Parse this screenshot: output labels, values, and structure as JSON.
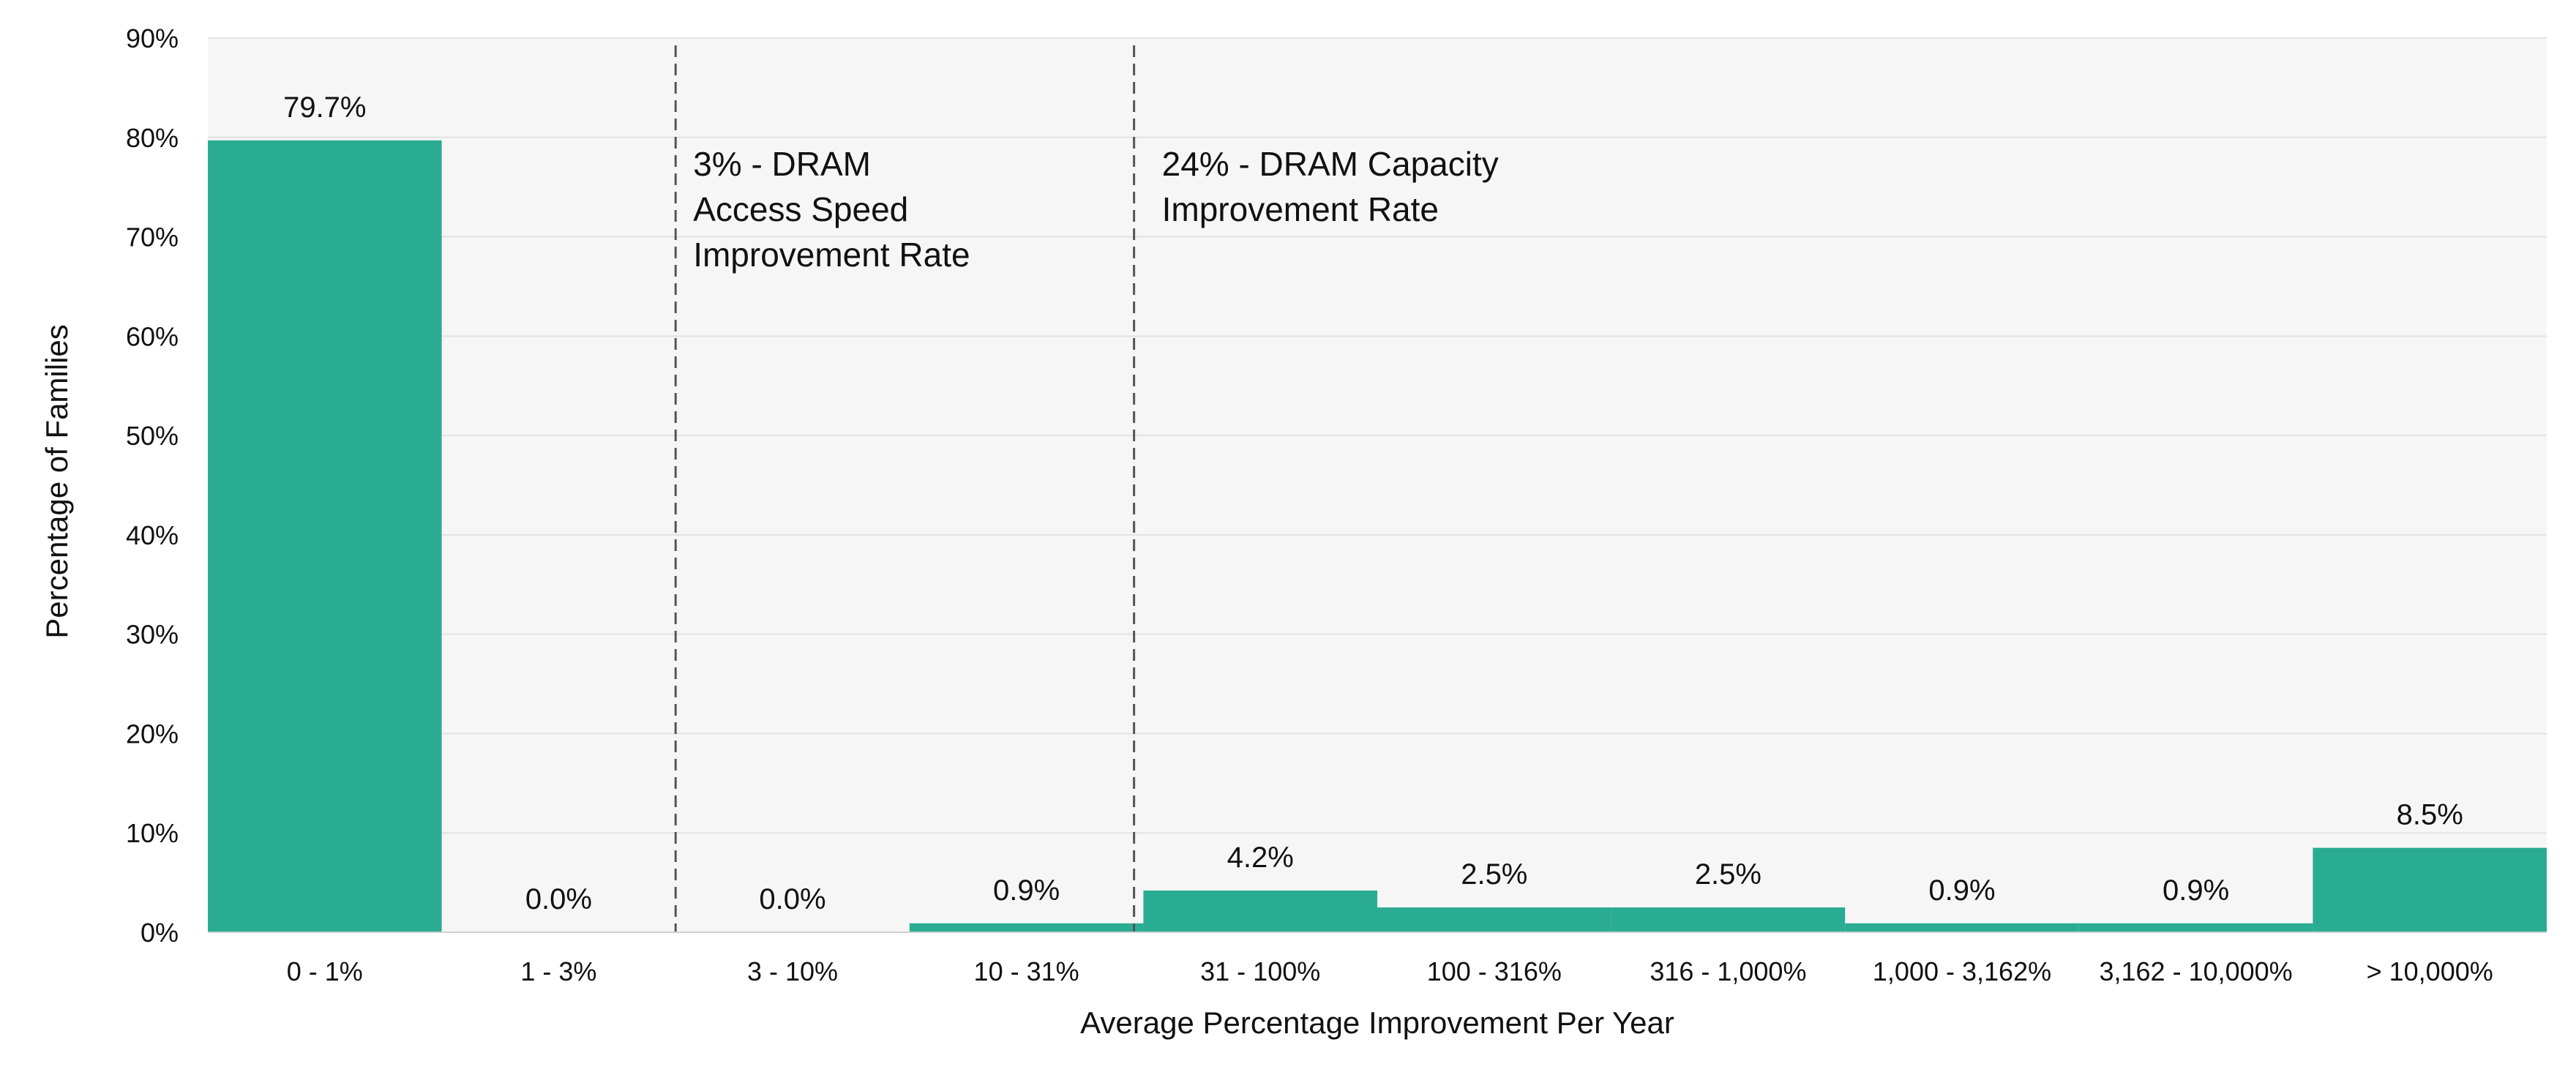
{
  "chart_data": {
    "type": "bar",
    "title": "",
    "xlabel": "Average Percentage Improvement Per Year",
    "ylabel": "Percentage of Families",
    "ylim": [
      0,
      90
    ],
    "ytick_step": 10,
    "ytick_suffix": "%",
    "grid": true,
    "legend": "none",
    "categories": [
      "0 - 1%",
      "1 - 3%",
      "3 - 10%",
      "10 - 31%",
      "31 - 100%",
      "100 - 316%",
      "316 - 1,000%",
      "1,000 - 3,162%",
      "3,162 - 10,000%",
      "> 10,000%"
    ],
    "values": [
      79.7,
      0.0,
      0.0,
      0.9,
      4.2,
      2.5,
      2.5,
      0.9,
      0.9,
      8.5
    ],
    "data_labels": [
      "79.7%",
      "0.0%",
      "0.0%",
      "0.9%",
      "4.2%",
      "2.5%",
      "2.5%",
      "0.9%",
      "0.9%",
      "8.5%"
    ],
    "reference_lines": [
      {
        "label_lines": [
          "3% - DRAM",
          "Access Speed",
          "Improvement Rate"
        ],
        "position": "boundary between 1 - 3% and 3 - 10%"
      },
      {
        "label_lines": [
          "24% - DRAM Capacity",
          "Improvement Rate"
        ],
        "position": "near right edge of 10 - 31%"
      }
    ],
    "colors": {
      "bar": "#2aac93",
      "plot_background": "#f6f6f6",
      "gridline": "#e2e2e2",
      "reference_line": "#555555"
    }
  }
}
